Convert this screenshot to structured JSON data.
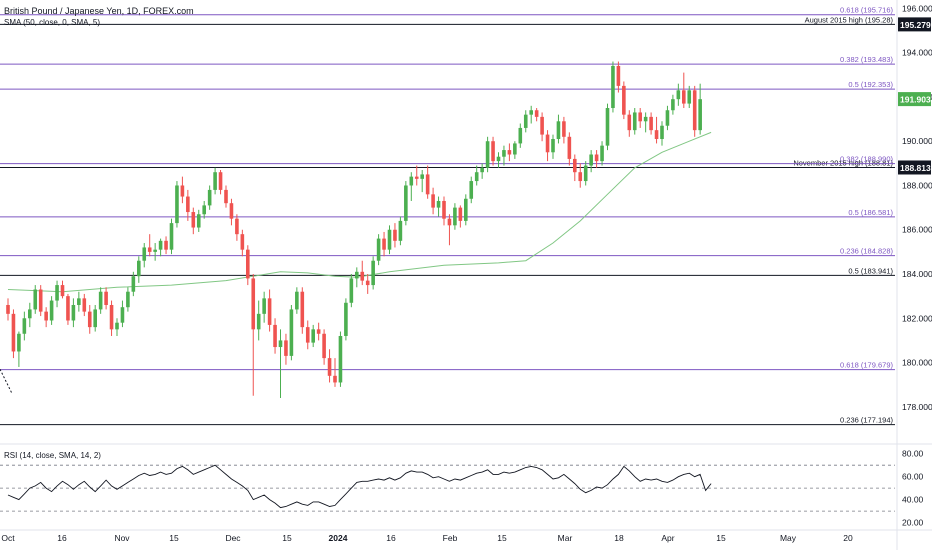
{
  "header": {
    "symbol_title": "British Pound / Japanese Yen, 1D, FOREX.com",
    "sma_label": "SMA (50, close, 0, SMA, 5)",
    "rsi_label": "RSI (14, close, SMA, 14, 2)"
  },
  "colors": {
    "bull": "#26a69a",
    "bull_candle": "#4caf50",
    "bear": "#ef5350",
    "sma": "#81c784",
    "fib_line": "#7e57c2",
    "level_line": "#131722",
    "price_tag_dark": "#131722",
    "price_tag_green": "#4caf50",
    "rsi_line": "#131722",
    "grid_dash": "#787b86"
  },
  "chart_data": [
    {
      "type": "candlestick",
      "title": "British Pound / Japanese Yen, 1D, FOREX.com",
      "x_ticks": [
        "Oct",
        "16",
        "Nov",
        "15",
        "Dec",
        "15",
        "2024",
        "16",
        "Feb",
        "15",
        "Mar",
        "18",
        "Apr",
        "15",
        "May",
        "20"
      ],
      "y_ticks": [
        "196.000",
        "194.000",
        "192.000",
        "190.000",
        "188.000",
        "186.000",
        "184.000",
        "182.000",
        "180.000",
        "178.000"
      ],
      "ylim": [
        176.5,
        196.2
      ],
      "price_tags": [
        {
          "value": 195.279,
          "label": "195.279",
          "style": "dark"
        },
        {
          "value": 191.903,
          "label": "191.903",
          "style": "green"
        },
        {
          "value": 188.813,
          "label": "188.813",
          "style": "dark"
        }
      ],
      "horizontal_levels": [
        {
          "value": 195.716,
          "label": "0.618 (195.716)",
          "kind": "fib"
        },
        {
          "value": 195.28,
          "label": "August 2015 high (195.28)",
          "kind": "level"
        },
        {
          "value": 193.483,
          "label": "0.382 (193.483)",
          "kind": "fib"
        },
        {
          "value": 192.353,
          "label": "0.5 (192.353)",
          "kind": "fib"
        },
        {
          "value": 188.81,
          "label": "November 2015 high (188.81)",
          "kind": "level"
        },
        {
          "value": 188.99,
          "label": "0.382 (188.990)",
          "kind": "fib"
        },
        {
          "value": 186.581,
          "label": "0.5 (186.581)",
          "kind": "fib"
        },
        {
          "value": 184.828,
          "label": "0.236 (184.828)",
          "kind": "fib"
        },
        {
          "value": 183.941,
          "label": "0.5 (183.941)",
          "kind": "level"
        },
        {
          "value": 179.679,
          "label": "0.618 (179.679)",
          "kind": "fib"
        },
        {
          "value": 177.194,
          "label": "0.236 (177.194)",
          "kind": "level"
        }
      ],
      "candles": [
        {
          "o": 182.6,
          "h": 182.9,
          "l": 181.9,
          "c": 182.2
        },
        {
          "o": 182.2,
          "h": 182.4,
          "l": 180.2,
          "c": 180.5
        },
        {
          "o": 180.5,
          "h": 181.4,
          "l": 179.8,
          "c": 181.3
        },
        {
          "o": 181.3,
          "h": 182.3,
          "l": 181.0,
          "c": 182.0
        },
        {
          "o": 182.0,
          "h": 182.7,
          "l": 181.6,
          "c": 182.4
        },
        {
          "o": 182.4,
          "h": 183.5,
          "l": 182.2,
          "c": 183.3
        },
        {
          "o": 183.3,
          "h": 183.5,
          "l": 182.1,
          "c": 182.3
        },
        {
          "o": 182.3,
          "h": 182.5,
          "l": 181.6,
          "c": 181.9
        },
        {
          "o": 181.9,
          "h": 183.0,
          "l": 181.7,
          "c": 182.8
        },
        {
          "o": 182.8,
          "h": 183.7,
          "l": 182.5,
          "c": 183.5
        },
        {
          "o": 183.5,
          "h": 183.7,
          "l": 182.9,
          "c": 183.0
        },
        {
          "o": 183.0,
          "h": 183.1,
          "l": 181.7,
          "c": 181.9
        },
        {
          "o": 181.9,
          "h": 182.9,
          "l": 181.6,
          "c": 182.6
        },
        {
          "o": 182.6,
          "h": 183.2,
          "l": 182.3,
          "c": 182.9
        },
        {
          "o": 182.9,
          "h": 183.1,
          "l": 182.1,
          "c": 182.3
        },
        {
          "o": 182.3,
          "h": 182.6,
          "l": 181.3,
          "c": 181.6
        },
        {
          "o": 181.6,
          "h": 182.6,
          "l": 181.4,
          "c": 182.4
        },
        {
          "o": 182.4,
          "h": 183.4,
          "l": 182.2,
          "c": 183.2
        },
        {
          "o": 183.2,
          "h": 183.4,
          "l": 182.4,
          "c": 182.6
        },
        {
          "o": 182.6,
          "h": 182.8,
          "l": 181.2,
          "c": 181.5
        },
        {
          "o": 181.5,
          "h": 182.0,
          "l": 181.2,
          "c": 181.8
        },
        {
          "o": 181.8,
          "h": 182.8,
          "l": 181.6,
          "c": 182.5
        },
        {
          "o": 182.5,
          "h": 183.4,
          "l": 182.3,
          "c": 183.2
        },
        {
          "o": 183.2,
          "h": 184.1,
          "l": 183.0,
          "c": 183.9
        },
        {
          "o": 183.9,
          "h": 184.8,
          "l": 183.6,
          "c": 184.6
        },
        {
          "o": 184.6,
          "h": 185.4,
          "l": 184.3,
          "c": 185.2
        },
        {
          "o": 185.2,
          "h": 185.8,
          "l": 184.8,
          "c": 185.0
        },
        {
          "o": 185.0,
          "h": 185.4,
          "l": 184.6,
          "c": 185.1
        },
        {
          "o": 185.1,
          "h": 185.6,
          "l": 184.8,
          "c": 185.5
        },
        {
          "o": 185.5,
          "h": 185.7,
          "l": 184.9,
          "c": 185.1
        },
        {
          "o": 185.1,
          "h": 186.5,
          "l": 184.9,
          "c": 186.3
        },
        {
          "o": 186.3,
          "h": 188.2,
          "l": 186.1,
          "c": 188.0
        },
        {
          "o": 188.0,
          "h": 188.4,
          "l": 187.2,
          "c": 187.5
        },
        {
          "o": 187.5,
          "h": 187.8,
          "l": 186.4,
          "c": 186.8
        },
        {
          "o": 186.8,
          "h": 187.0,
          "l": 185.8,
          "c": 186.1
        },
        {
          "o": 186.1,
          "h": 186.9,
          "l": 185.9,
          "c": 186.7
        },
        {
          "o": 186.7,
          "h": 187.3,
          "l": 186.5,
          "c": 187.1
        },
        {
          "o": 187.1,
          "h": 188.0,
          "l": 186.9,
          "c": 187.8
        },
        {
          "o": 187.8,
          "h": 188.8,
          "l": 187.6,
          "c": 188.6
        },
        {
          "o": 188.6,
          "h": 188.7,
          "l": 187.6,
          "c": 187.8
        },
        {
          "o": 187.8,
          "h": 188.0,
          "l": 187.0,
          "c": 187.2
        },
        {
          "o": 187.2,
          "h": 187.4,
          "l": 186.2,
          "c": 186.5
        },
        {
          "o": 186.5,
          "h": 186.7,
          "l": 185.5,
          "c": 185.8
        },
        {
          "o": 185.8,
          "h": 186.0,
          "l": 184.8,
          "c": 185.1
        },
        {
          "o": 185.1,
          "h": 185.3,
          "l": 183.5,
          "c": 183.8
        },
        {
          "o": 183.8,
          "h": 184.0,
          "l": 178.5,
          "c": 181.5
        },
        {
          "o": 181.5,
          "h": 182.8,
          "l": 181.0,
          "c": 182.2
        },
        {
          "o": 182.2,
          "h": 183.2,
          "l": 181.8,
          "c": 182.9
        },
        {
          "o": 182.9,
          "h": 183.3,
          "l": 181.4,
          "c": 181.7
        },
        {
          "o": 181.7,
          "h": 182.0,
          "l": 180.4,
          "c": 180.7
        },
        {
          "o": 180.7,
          "h": 181.5,
          "l": 178.4,
          "c": 181.0
        },
        {
          "o": 181.0,
          "h": 181.3,
          "l": 179.9,
          "c": 180.3
        },
        {
          "o": 180.3,
          "h": 182.6,
          "l": 180.1,
          "c": 182.4
        },
        {
          "o": 182.4,
          "h": 183.4,
          "l": 182.2,
          "c": 183.2
        },
        {
          "o": 183.2,
          "h": 183.4,
          "l": 181.3,
          "c": 181.6
        },
        {
          "o": 181.6,
          "h": 181.9,
          "l": 180.6,
          "c": 180.9
        },
        {
          "o": 180.9,
          "h": 181.7,
          "l": 180.7,
          "c": 181.5
        },
        {
          "o": 181.5,
          "h": 181.8,
          "l": 181.0,
          "c": 181.3
        },
        {
          "o": 181.3,
          "h": 181.5,
          "l": 179.9,
          "c": 180.2
        },
        {
          "o": 180.2,
          "h": 180.6,
          "l": 179.1,
          "c": 179.4
        },
        {
          "o": 179.4,
          "h": 180.2,
          "l": 178.9,
          "c": 179.1
        },
        {
          "o": 179.1,
          "h": 181.4,
          "l": 178.9,
          "c": 181.2
        },
        {
          "o": 181.2,
          "h": 182.9,
          "l": 181.0,
          "c": 182.7
        },
        {
          "o": 182.7,
          "h": 184.0,
          "l": 182.5,
          "c": 183.8
        },
        {
          "o": 183.8,
          "h": 184.3,
          "l": 183.4,
          "c": 184.1
        },
        {
          "o": 184.1,
          "h": 184.6,
          "l": 183.5,
          "c": 183.7
        },
        {
          "o": 183.7,
          "h": 184.0,
          "l": 183.1,
          "c": 183.5
        },
        {
          "o": 183.5,
          "h": 184.8,
          "l": 183.3,
          "c": 184.6
        },
        {
          "o": 184.6,
          "h": 185.8,
          "l": 184.4,
          "c": 185.6
        },
        {
          "o": 185.6,
          "h": 185.9,
          "l": 184.8,
          "c": 185.1
        },
        {
          "o": 185.1,
          "h": 186.2,
          "l": 184.9,
          "c": 186.0
        },
        {
          "o": 186.0,
          "h": 186.3,
          "l": 185.2,
          "c": 185.5
        },
        {
          "o": 185.5,
          "h": 186.6,
          "l": 185.3,
          "c": 186.4
        },
        {
          "o": 186.4,
          "h": 188.2,
          "l": 186.2,
          "c": 188.0
        },
        {
          "o": 188.0,
          "h": 188.6,
          "l": 187.3,
          "c": 188.4
        },
        {
          "o": 188.4,
          "h": 188.9,
          "l": 188.0,
          "c": 188.3
        },
        {
          "o": 188.3,
          "h": 188.7,
          "l": 187.7,
          "c": 188.5
        },
        {
          "o": 188.5,
          "h": 188.9,
          "l": 187.4,
          "c": 187.6
        },
        {
          "o": 187.6,
          "h": 187.9,
          "l": 186.7,
          "c": 187.0
        },
        {
          "o": 187.0,
          "h": 187.5,
          "l": 186.6,
          "c": 187.3
        },
        {
          "o": 187.3,
          "h": 187.5,
          "l": 186.2,
          "c": 186.5
        },
        {
          "o": 186.5,
          "h": 186.7,
          "l": 185.3,
          "c": 186.2
        },
        {
          "o": 186.2,
          "h": 187.2,
          "l": 186.0,
          "c": 187.0
        },
        {
          "o": 187.0,
          "h": 187.1,
          "l": 186.1,
          "c": 186.4
        },
        {
          "o": 186.4,
          "h": 187.6,
          "l": 186.2,
          "c": 187.4
        },
        {
          "o": 187.4,
          "h": 188.4,
          "l": 187.2,
          "c": 188.2
        },
        {
          "o": 188.2,
          "h": 188.9,
          "l": 188.0,
          "c": 188.6
        },
        {
          "o": 188.6,
          "h": 189.0,
          "l": 188.3,
          "c": 188.8
        },
        {
          "o": 188.8,
          "h": 190.2,
          "l": 188.6,
          "c": 190.0
        },
        {
          "o": 190.0,
          "h": 190.2,
          "l": 188.9,
          "c": 189.1
        },
        {
          "o": 189.1,
          "h": 189.5,
          "l": 188.8,
          "c": 189.3
        },
        {
          "o": 189.3,
          "h": 189.8,
          "l": 188.9,
          "c": 189.6
        },
        {
          "o": 189.6,
          "h": 189.9,
          "l": 189.1,
          "c": 189.4
        },
        {
          "o": 189.4,
          "h": 190.0,
          "l": 189.2,
          "c": 189.9
        },
        {
          "o": 189.9,
          "h": 190.8,
          "l": 189.7,
          "c": 190.6
        },
        {
          "o": 190.6,
          "h": 191.4,
          "l": 190.4,
          "c": 191.2
        },
        {
          "o": 191.2,
          "h": 191.6,
          "l": 190.8,
          "c": 191.4
        },
        {
          "o": 191.4,
          "h": 191.5,
          "l": 190.9,
          "c": 191.1
        },
        {
          "o": 191.1,
          "h": 191.3,
          "l": 190.0,
          "c": 190.3
        },
        {
          "o": 190.3,
          "h": 190.5,
          "l": 189.1,
          "c": 189.5
        },
        {
          "o": 189.5,
          "h": 190.3,
          "l": 189.2,
          "c": 190.1
        },
        {
          "o": 190.1,
          "h": 191.2,
          "l": 189.9,
          "c": 190.9
        },
        {
          "o": 190.9,
          "h": 191.1,
          "l": 189.9,
          "c": 190.2
        },
        {
          "o": 190.2,
          "h": 190.4,
          "l": 188.9,
          "c": 189.2
        },
        {
          "o": 189.2,
          "h": 189.4,
          "l": 188.2,
          "c": 188.6
        },
        {
          "o": 188.6,
          "h": 189.0,
          "l": 187.9,
          "c": 188.2
        },
        {
          "o": 188.2,
          "h": 189.1,
          "l": 188.0,
          "c": 188.9
        },
        {
          "o": 188.9,
          "h": 189.6,
          "l": 188.6,
          "c": 189.4
        },
        {
          "o": 189.4,
          "h": 189.6,
          "l": 188.8,
          "c": 189.1
        },
        {
          "o": 189.1,
          "h": 190.0,
          "l": 188.9,
          "c": 189.8
        },
        {
          "o": 189.8,
          "h": 191.7,
          "l": 189.6,
          "c": 191.5
        },
        {
          "o": 191.5,
          "h": 193.6,
          "l": 191.3,
          "c": 193.4
        },
        {
          "o": 193.4,
          "h": 193.6,
          "l": 192.2,
          "c": 192.5
        },
        {
          "o": 192.5,
          "h": 192.7,
          "l": 191.0,
          "c": 191.2
        },
        {
          "o": 191.2,
          "h": 191.4,
          "l": 190.2,
          "c": 190.5
        },
        {
          "o": 190.5,
          "h": 191.5,
          "l": 190.3,
          "c": 191.3
        },
        {
          "o": 191.3,
          "h": 191.5,
          "l": 190.6,
          "c": 190.9
        },
        {
          "o": 190.9,
          "h": 191.3,
          "l": 190.4,
          "c": 191.1
        },
        {
          "o": 191.1,
          "h": 191.3,
          "l": 190.3,
          "c": 190.5
        },
        {
          "o": 190.5,
          "h": 191.1,
          "l": 189.9,
          "c": 190.1
        },
        {
          "o": 190.1,
          "h": 190.9,
          "l": 189.8,
          "c": 190.7
        },
        {
          "o": 190.7,
          "h": 191.6,
          "l": 190.5,
          "c": 191.4
        },
        {
          "o": 191.4,
          "h": 192.1,
          "l": 191.2,
          "c": 191.9
        },
        {
          "o": 191.9,
          "h": 192.6,
          "l": 191.6,
          "c": 192.3
        },
        {
          "o": 192.3,
          "h": 193.1,
          "l": 191.5,
          "c": 191.7
        },
        {
          "o": 191.7,
          "h": 192.5,
          "l": 191.5,
          "c": 192.3
        },
        {
          "o": 192.3,
          "h": 192.5,
          "l": 190.2,
          "c": 190.5
        },
        {
          "o": 190.5,
          "h": 192.6,
          "l": 190.3,
          "c": 191.9
        }
      ],
      "sma_50": [
        [
          0,
          183.3
        ],
        [
          10,
          183.2
        ],
        [
          20,
          183.4
        ],
        [
          30,
          183.5
        ],
        [
          40,
          183.7
        ],
        [
          50,
          184.1
        ],
        [
          55,
          184.05
        ],
        [
          60,
          183.9
        ],
        [
          64,
          183.85
        ],
        [
          70,
          184.1
        ],
        [
          80,
          184.4
        ],
        [
          90,
          184.5
        ],
        [
          95,
          184.6
        ],
        [
          100,
          185.4
        ],
        [
          105,
          186.4
        ],
        [
          110,
          187.6
        ],
        [
          115,
          188.8
        ],
        [
          120,
          189.5
        ],
        [
          125,
          190.0
        ],
        [
          129,
          190.4
        ]
      ],
      "price_markers": {
        "last_index": 129
      }
    },
    {
      "type": "line",
      "title": "RSI (14, close, SMA, 14, 2)",
      "y_ticks": [
        "80.00",
        "60.00",
        "40.00",
        "20.00"
      ],
      "ylim": [
        17,
        85
      ],
      "levels": [
        70,
        50,
        30
      ],
      "values": [
        44,
        42,
        40,
        45,
        50,
        52,
        55,
        50,
        47,
        52,
        56,
        53,
        49,
        53,
        56,
        51,
        47,
        52,
        57,
        52,
        49,
        52,
        55,
        58,
        61,
        63,
        61,
        62,
        64,
        62,
        63,
        67,
        69,
        66,
        62,
        64,
        66,
        68,
        70,
        66,
        62,
        58,
        55,
        52,
        48,
        40,
        42,
        44,
        40,
        37,
        33,
        34,
        36,
        38,
        36,
        35,
        38,
        38,
        36,
        34,
        35,
        40,
        45,
        50,
        55,
        56,
        56,
        57,
        58,
        57,
        59,
        57,
        59,
        63,
        65,
        64,
        64,
        62,
        59,
        60,
        58,
        56,
        58,
        57,
        59,
        61,
        63,
        64,
        66,
        62,
        62,
        64,
        63,
        64,
        66,
        68,
        69,
        68,
        66,
        62,
        58,
        59,
        62,
        58,
        54,
        49,
        46,
        48,
        51,
        50,
        53,
        58,
        62,
        69,
        65,
        60,
        56,
        58,
        57,
        58,
        56,
        55,
        57,
        60,
        62,
        63,
        60,
        62,
        48,
        54
      ]
    }
  ]
}
